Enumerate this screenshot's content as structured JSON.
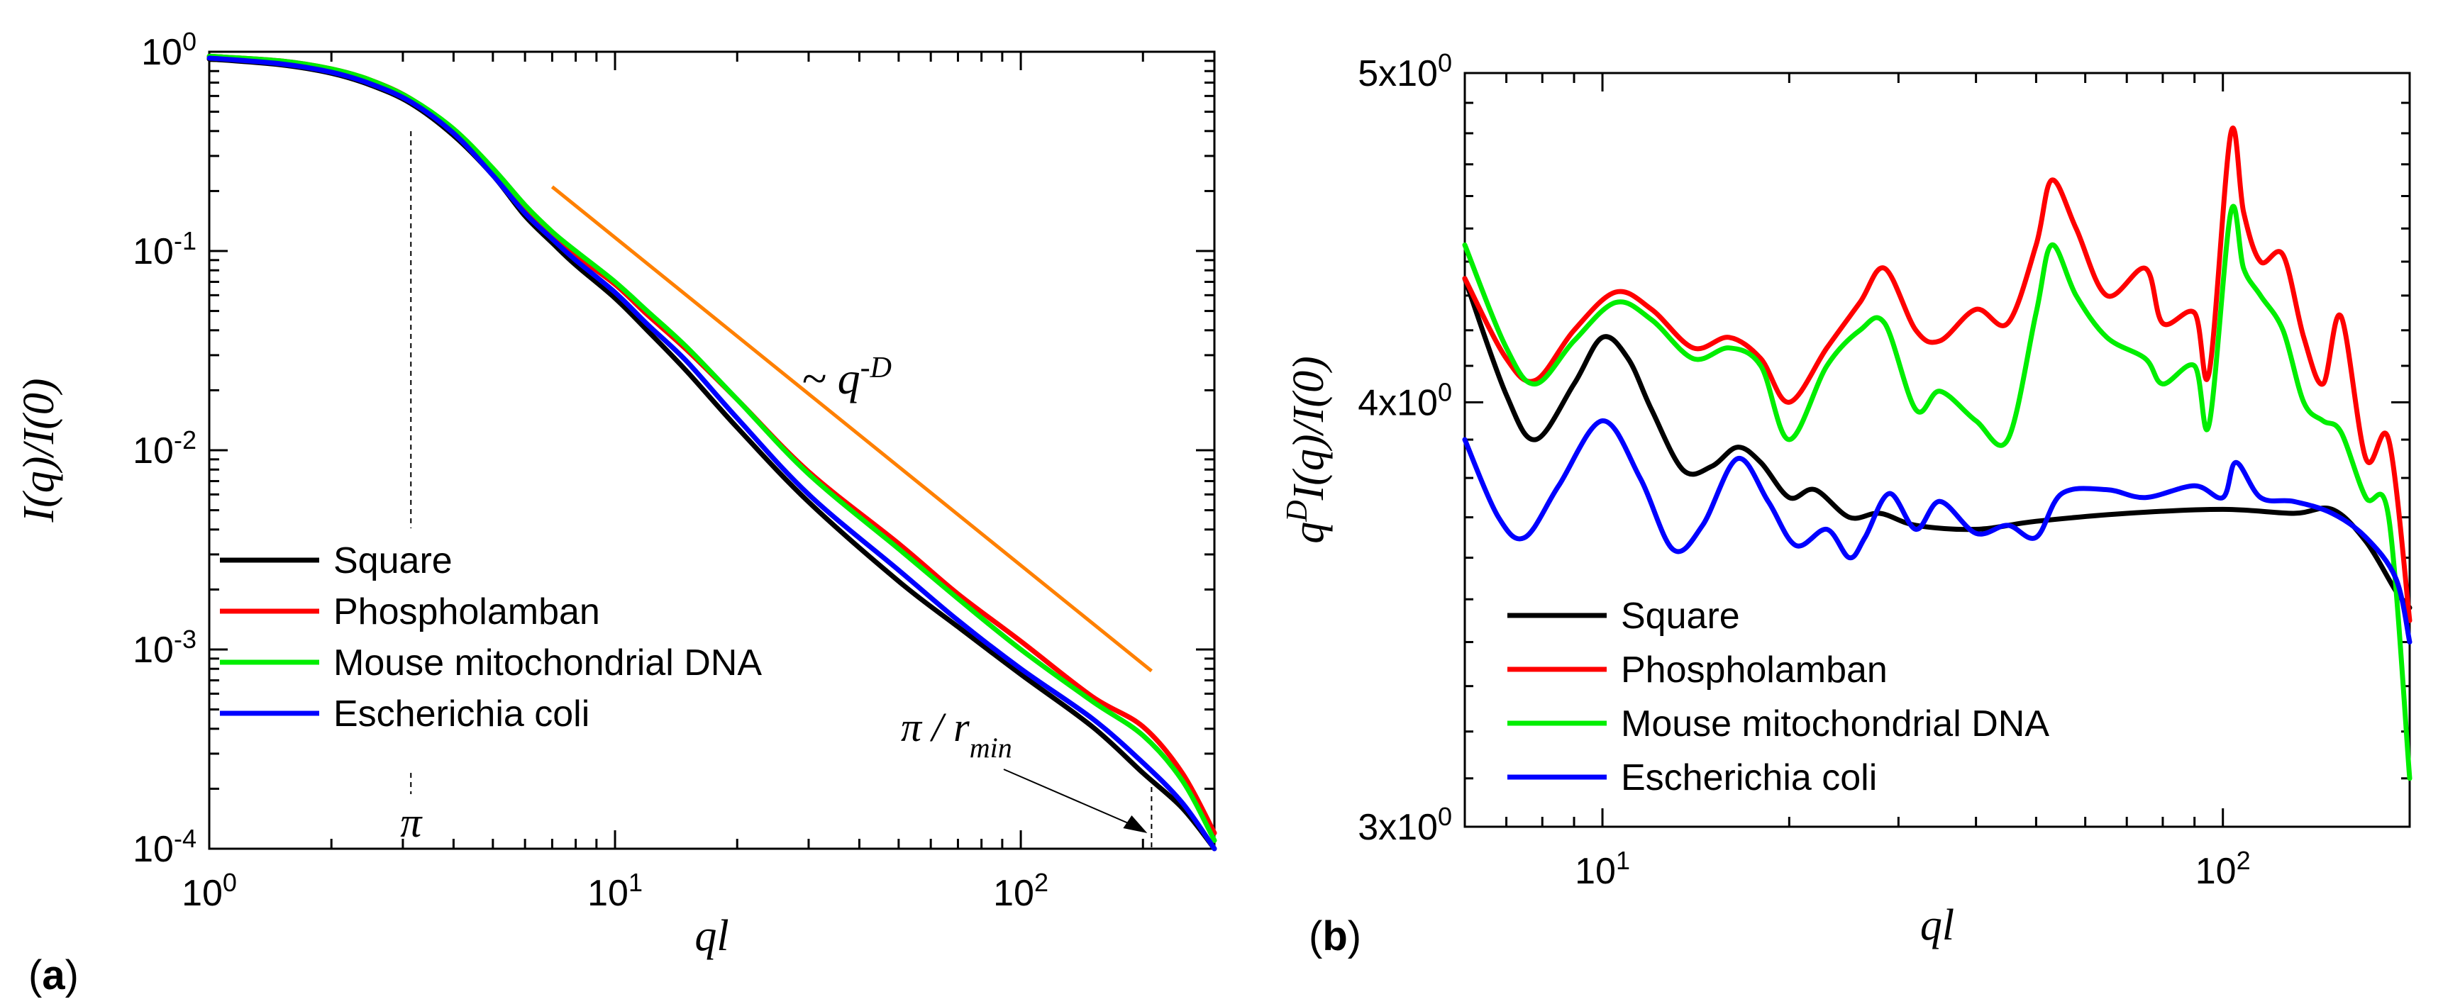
{
  "figure": {
    "panel_a_tag_open": "(",
    "panel_a_tag_letter": "a",
    "panel_a_tag_close": ")",
    "panel_b_tag_open": "(",
    "panel_b_tag_letter": "b",
    "panel_b_tag_close": ")"
  },
  "chart_data": [
    {
      "type": "line",
      "panel": "a",
      "xscale": "log",
      "yscale": "log",
      "xlim": [
        1,
        300
      ],
      "ylim": [
        0.0001,
        1
      ],
      "xlabel": "ql",
      "ylabel": "I(q)/I(0)",
      "x_ticks": [
        {
          "base": "10",
          "exp": "0",
          "value": 1
        },
        {
          "base": "10",
          "exp": "1",
          "value": 10
        },
        {
          "base": "10",
          "exp": "2",
          "value": 100
        }
      ],
      "y_ticks": [
        {
          "base": "10",
          "exp": "0",
          "value": 1
        },
        {
          "base": "10",
          "exp": "-1",
          "value": 0.1
        },
        {
          "base": "10",
          "exp": "-2",
          "value": 0.01
        },
        {
          "base": "10",
          "exp": "-3",
          "value": 0.001
        },
        {
          "base": "10",
          "exp": "-4",
          "value": 0.0001
        }
      ],
      "legend": [
        {
          "name": "Square",
          "color": "#000000"
        },
        {
          "name": "Phospholamban",
          "color": "#ff0000"
        },
        {
          "name": "Mouse mitochondrial DNA",
          "color": "#00ee00"
        },
        {
          "name": "Escherichia coli",
          "color": "#0000ff"
        }
      ],
      "series": [
        {
          "name": "Square",
          "color": "#000000",
          "x": [
            1,
            1.5,
            2,
            2.5,
            3.14,
            4,
            5,
            6,
            7,
            8,
            10,
            12,
            15,
            20,
            30,
            50,
            70,
            100,
            150,
            200,
            250,
            300
          ],
          "y": [
            0.92,
            0.86,
            0.78,
            0.68,
            0.55,
            0.38,
            0.24,
            0.15,
            0.11,
            0.085,
            0.058,
            0.04,
            0.025,
            0.013,
            0.0055,
            0.0022,
            0.0013,
            0.00075,
            0.00041,
            0.00024,
            0.00016,
            0.0001
          ]
        },
        {
          "name": "Phospholamban",
          "color": "#ff0000",
          "x": [
            1,
            1.5,
            2,
            2.5,
            3.14,
            4,
            5,
            6,
            7,
            8,
            10,
            12,
            15,
            20,
            30,
            50,
            70,
            100,
            150,
            200,
            250,
            300
          ],
          "y": [
            0.95,
            0.9,
            0.82,
            0.72,
            0.58,
            0.4,
            0.25,
            0.16,
            0.12,
            0.095,
            0.068,
            0.048,
            0.032,
            0.018,
            0.0078,
            0.0034,
            0.0019,
            0.0011,
            0.00058,
            0.00041,
            0.00024,
            0.00012
          ]
        },
        {
          "name": "Mouse mitochondrial DNA",
          "color": "#00ee00",
          "x": [
            1,
            1.5,
            2,
            2.5,
            3.14,
            4,
            5,
            6,
            7,
            8,
            10,
            12,
            15,
            20,
            30,
            50,
            70,
            100,
            150,
            200,
            250,
            300
          ],
          "y": [
            0.95,
            0.9,
            0.82,
            0.72,
            0.58,
            0.41,
            0.26,
            0.17,
            0.125,
            0.1,
            0.07,
            0.05,
            0.033,
            0.018,
            0.0076,
            0.0032,
            0.0018,
            0.001,
            0.00055,
            0.00037,
            0.00022,
            0.00011
          ]
        },
        {
          "name": "Escherichia coli",
          "color": "#0000ff",
          "x": [
            1,
            1.5,
            2,
            2.5,
            3.14,
            4,
            5,
            6,
            7,
            8,
            10,
            12,
            15,
            20,
            30,
            50,
            70,
            100,
            150,
            200,
            250,
            300
          ],
          "y": [
            0.93,
            0.87,
            0.79,
            0.69,
            0.56,
            0.39,
            0.24,
            0.155,
            0.115,
            0.09,
            0.062,
            0.043,
            0.028,
            0.0145,
            0.006,
            0.0025,
            0.0014,
            0.0008,
            0.00045,
            0.00027,
            0.00017,
            0.0001
          ]
        }
      ],
      "guide_line": {
        "label": "~ q",
        "label_exp": "-D",
        "color": "#ff8000",
        "x": [
          7,
          210
        ],
        "y": [
          0.21,
          0.00078
        ]
      },
      "annotations": [
        {
          "text": "π",
          "x": 3.14
        },
        {
          "text": "π / r",
          "subscript": "min",
          "x": 210
        }
      ]
    },
    {
      "type": "line",
      "panel": "b",
      "xscale": "log",
      "yscale": "log",
      "xlim": [
        6,
        200
      ],
      "ylim": [
        3,
        5
      ],
      "xlabel": "ql",
      "ylabel": "q^D I(q)/I(0)",
      "ylabel_parts": {
        "base": "q",
        "sup": "D",
        "rest": "I(q)/I(0)"
      },
      "x_ticks": [
        {
          "base": "10",
          "exp": "1",
          "value": 10
        },
        {
          "base": "10",
          "exp": "2",
          "value": 100
        }
      ],
      "y_ticks": [
        {
          "label": "5x10",
          "exp": "0",
          "value": 5
        },
        {
          "label": "4x10",
          "exp": "0",
          "value": 4
        },
        {
          "label": "3x10",
          "exp": "0",
          "value": 3
        }
      ],
      "legend": [
        {
          "name": "Square",
          "color": "#000000"
        },
        {
          "name": "Phospholamban",
          "color": "#ff0000"
        },
        {
          "name": "Mouse mitochondrial DNA",
          "color": "#00ee00"
        },
        {
          "name": "Escherichia coli",
          "color": "#0000ff"
        }
      ],
      "series": [
        {
          "name": "Square",
          "color": "#000000",
          "x": [
            6,
            7,
            7.8,
            9,
            10,
            11,
            12,
            13.5,
            15,
            16.5,
            18,
            20,
            22,
            25,
            28,
            32,
            40,
            50,
            70,
            100,
            130,
            150,
            170,
            190,
            200
          ],
          "y": [
            4.35,
            4.02,
            3.9,
            4.05,
            4.18,
            4.12,
            3.98,
            3.82,
            3.83,
            3.88,
            3.84,
            3.75,
            3.77,
            3.7,
            3.71,
            3.68,
            3.67,
            3.69,
            3.71,
            3.72,
            3.71,
            3.72,
            3.64,
            3.52,
            3.48
          ]
        },
        {
          "name": "Phospholamban",
          "color": "#ff0000",
          "x": [
            6,
            7,
            7.8,
            9,
            10.5,
            12,
            14,
            16,
            18,
            20,
            23,
            26,
            28.5,
            32,
            35,
            40,
            45,
            50,
            53,
            58,
            65,
            75,
            80,
            90,
            95,
            103,
            108,
            115,
            125,
            135,
            145,
            155,
            170,
            185,
            200
          ],
          "y": [
            4.35,
            4.12,
            4.06,
            4.2,
            4.31,
            4.26,
            4.15,
            4.18,
            4.12,
            4.0,
            4.15,
            4.28,
            4.38,
            4.2,
            4.17,
            4.26,
            4.22,
            4.45,
            4.65,
            4.5,
            4.3,
            4.38,
            4.22,
            4.25,
            4.08,
            4.8,
            4.55,
            4.4,
            4.42,
            4.18,
            4.05,
            4.24,
            3.85,
            3.9,
            3.45
          ]
        },
        {
          "name": "Mouse mitochondrial DNA",
          "color": "#00ee00",
          "x": [
            6,
            7,
            7.8,
            9,
            10.5,
            12,
            14,
            16,
            18,
            20,
            23,
            26,
            28.5,
            32,
            35,
            40,
            45,
            50,
            53,
            58,
            65,
            75,
            80,
            90,
            95,
            103,
            108,
            115,
            125,
            135,
            145,
            155,
            170,
            185,
            200
          ],
          "y": [
            4.45,
            4.15,
            4.05,
            4.17,
            4.28,
            4.23,
            4.12,
            4.15,
            4.1,
            3.9,
            4.1,
            4.2,
            4.22,
            3.98,
            4.03,
            3.95,
            3.9,
            4.25,
            4.45,
            4.3,
            4.18,
            4.12,
            4.05,
            4.1,
            3.94,
            4.55,
            4.38,
            4.3,
            4.2,
            4.0,
            3.95,
            3.92,
            3.75,
            3.7,
            3.1
          ]
        },
        {
          "name": "Escherichia coli",
          "color": "#0000ff",
          "x": [
            6,
            6.8,
            7.5,
            8.5,
            10,
            11.5,
            13,
            14.5,
            16.5,
            18.5,
            20.5,
            23,
            25,
            26.5,
            29,
            32,
            35,
            40,
            45,
            50,
            55,
            65,
            75,
            90,
            100,
            105,
            115,
            130,
            150,
            170,
            190,
            200
          ],
          "y": [
            3.9,
            3.7,
            3.65,
            3.78,
            3.95,
            3.8,
            3.62,
            3.68,
            3.85,
            3.74,
            3.63,
            3.67,
            3.6,
            3.65,
            3.76,
            3.67,
            3.74,
            3.66,
            3.68,
            3.65,
            3.76,
            3.77,
            3.75,
            3.78,
            3.75,
            3.84,
            3.75,
            3.74,
            3.71,
            3.65,
            3.55,
            3.4
          ]
        }
      ]
    }
  ]
}
